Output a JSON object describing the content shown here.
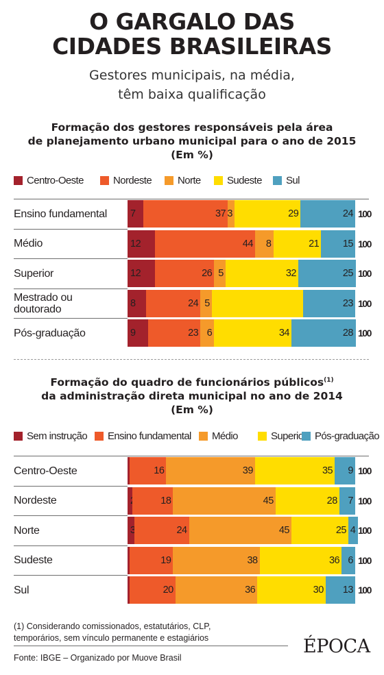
{
  "title": [
    "O GARGALO DAS",
    "CIDADES BRASILEIRAS"
  ],
  "subtitle": [
    "Gestores municipais, na média,",
    "têm baixa qualificação"
  ],
  "colors": {
    "c1": "#a3222c",
    "c2": "#ee5a2a",
    "c3": "#f59a2a",
    "c4": "#ffdd00",
    "c5": "#4fa0bf"
  },
  "chart_data": [
    {
      "type": "bar",
      "stacked": true,
      "orientation": "horizontal",
      "title": [
        "Formação dos gestores responsáveis pela área",
        "de planejamento urbano municipal para o ano de 2015",
        "(Em %)"
      ],
      "categories": [
        "Ensino fundamental",
        "Médio",
        "Superior",
        "Mestrado ou doutorado",
        "Pós-graduação"
      ],
      "label_lines": [
        [
          "Ensino fundamental"
        ],
        [
          "Médio"
        ],
        [
          "Superior"
        ],
        [
          "Mestrado ou",
          "doutorado"
        ],
        [
          "Pós-graduação"
        ]
      ],
      "series": [
        {
          "name": "Centro-Oeste",
          "color": "#a3222c",
          "values": [
            7,
            12,
            12,
            8,
            9
          ]
        },
        {
          "name": "Nordeste",
          "color": "#ee5a2a",
          "values": [
            37,
            44,
            26,
            24,
            23
          ]
        },
        {
          "name": "Norte",
          "color": "#f59a2a",
          "values": [
            3,
            8,
            5,
            5,
            6
          ]
        },
        {
          "name": "Sudeste",
          "color": "#ffdd00",
          "values": [
            29,
            21,
            32,
            40,
            34
          ]
        },
        {
          "name": "Sul",
          "color": "#4fa0bf",
          "values": [
            24,
            15,
            25,
            23,
            28
          ]
        }
      ],
      "labels": [
        [
          "7",
          "37",
          "3",
          "29",
          "24"
        ],
        [
          "12",
          "44",
          "8",
          "21",
          "15"
        ],
        [
          "12",
          "26",
          "5",
          "32",
          "25"
        ],
        [
          "8",
          "24",
          "5",
          "",
          "23"
        ],
        [
          "9",
          "23",
          "6",
          "34",
          "28"
        ]
      ],
      "totals": [
        "100",
        "100",
        "100",
        "100",
        "100"
      ],
      "xlim": [
        0,
        100
      ],
      "legend": "top"
    },
    {
      "type": "bar",
      "stacked": true,
      "orientation": "horizontal",
      "title": [
        "Formação do quadro de funcionários públicos",
        "da administração direta municipal no ano de 2014",
        "(Em %)"
      ],
      "title_sup": "(1)",
      "categories": [
        "Centro-Oeste",
        "Nordeste",
        "Norte",
        "Sudeste",
        "Sul"
      ],
      "label_lines": [
        [
          "Centro-Oeste"
        ],
        [
          "Nordeste"
        ],
        [
          "Norte"
        ],
        [
          "Sudeste"
        ],
        [
          "Sul"
        ]
      ],
      "series": [
        {
          "name": "Sem instrução",
          "color": "#a3222c",
          "values": [
            1,
            2,
            3,
            1,
            1
          ]
        },
        {
          "name": "Ensino fundamental",
          "color": "#ee5a2a",
          "values": [
            16,
            18,
            24,
            19,
            20
          ]
        },
        {
          "name": "Médio",
          "color": "#f59a2a",
          "values": [
            39,
            45,
            45,
            38,
            36
          ]
        },
        {
          "name": "Superior",
          "color": "#ffdd00",
          "values": [
            35,
            28,
            25,
            36,
            30
          ]
        },
        {
          "name": "Pós-graduação",
          "color": "#4fa0bf",
          "values": [
            9,
            7,
            4,
            6,
            13
          ]
        }
      ],
      "labels": [
        [
          "1",
          "16",
          "39",
          "35",
          "9"
        ],
        [
          "2",
          "18",
          "45",
          "28",
          "7"
        ],
        [
          "3",
          "24",
          "45",
          "25",
          "4"
        ],
        [
          "1",
          "19",
          "38",
          "36",
          "6"
        ],
        [
          "1",
          "20",
          "36",
          "30",
          "13"
        ]
      ],
      "totals": [
        "100",
        "100",
        "100",
        "100",
        "100"
      ],
      "xlim": [
        0,
        100
      ],
      "legend": "top"
    }
  ],
  "footnote": [
    "(1) Considerando comissionados, estatutários, CLP,",
    "temporários, sem vínculo permanente e estagiários"
  ],
  "source": "Fonte: IBGE – Organizado por Muove Brasil",
  "logo": "ÉPOCA"
}
